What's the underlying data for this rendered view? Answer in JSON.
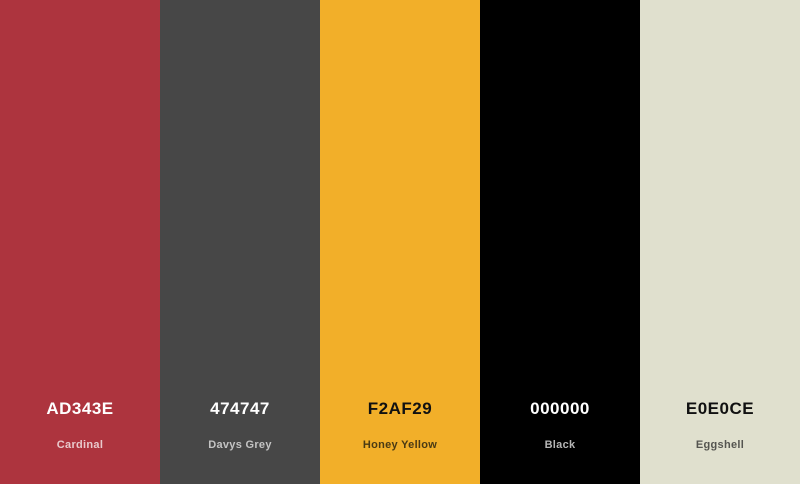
{
  "palette": {
    "colors": [
      {
        "hex": "AD343E",
        "name": "Cardinal",
        "color": "#AD343E"
      },
      {
        "hex": "474747",
        "name": "Davys Grey",
        "color": "#474747"
      },
      {
        "hex": "F2AF29",
        "name": "Honey Yellow",
        "color": "#F2AF29"
      },
      {
        "hex": "000000",
        "name": "Black",
        "color": "#000000"
      },
      {
        "hex": "E0E0CE",
        "name": "Eggshell",
        "color": "#E0E0CE"
      }
    ]
  }
}
